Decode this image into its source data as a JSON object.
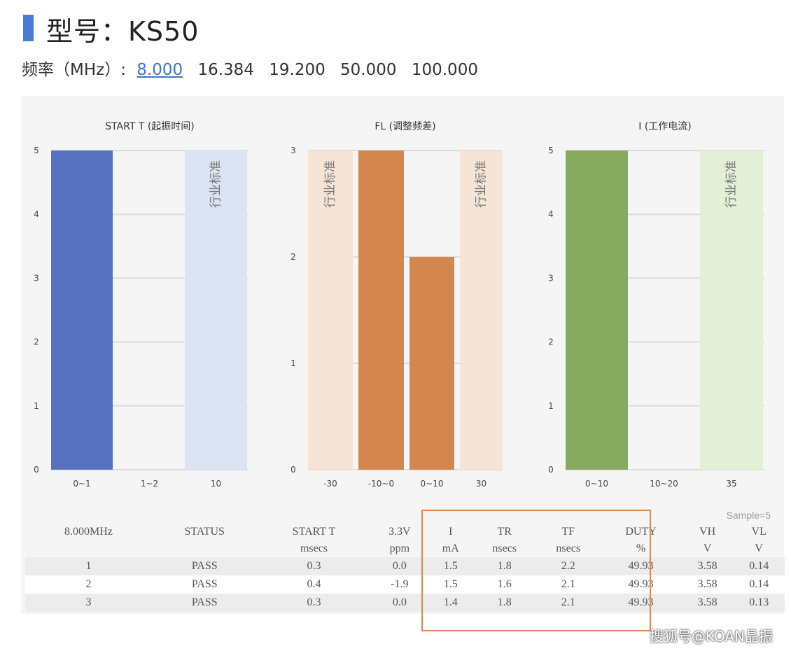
{
  "header": {
    "title": "型号：KS50",
    "freq_label": "频率（MHz）:",
    "freq_options": [
      "8.000",
      "16.384",
      "19.200",
      "50.000",
      "100.000"
    ],
    "freq_selected": "8.000",
    "accent_color": "#4a7bd0"
  },
  "chart_data": [
    {
      "type": "bar",
      "title": "START T (起振时间)",
      "categories": [
        "0~1",
        "1~2",
        "10"
      ],
      "values": [
        5,
        0,
        null
      ],
      "ylim": [
        0,
        5
      ],
      "yticks": [
        0,
        1,
        2,
        3,
        4,
        5
      ],
      "band_categories": [
        "10"
      ],
      "band_label": "行业标准",
      "bar_color": "#5672bf",
      "band_color": "#dce3f3",
      "grid": true
    },
    {
      "type": "bar",
      "title": "FL (调整频差)",
      "categories": [
        "-30",
        "-10~0",
        "0~10",
        "30"
      ],
      "values": [
        null,
        3,
        2,
        null
      ],
      "ylim": [
        0,
        3
      ],
      "yticks": [
        0,
        1,
        2,
        3
      ],
      "band_categories": [
        "-30",
        "30"
      ],
      "band_label": "行业标准",
      "bar_color": "#d3874f",
      "band_color": "#f6e4d6",
      "grid": true
    },
    {
      "type": "bar",
      "title": "I (工作电流)",
      "categories": [
        "0~10",
        "10~20",
        "35"
      ],
      "values": [
        5,
        0,
        null
      ],
      "ylim": [
        0,
        5
      ],
      "yticks": [
        0,
        1,
        2,
        3,
        4,
        5
      ],
      "band_categories": [
        "35"
      ],
      "band_label": "行业标准",
      "bar_color": "#86aa5e",
      "band_color": "#e4efd8",
      "grid": true
    }
  ],
  "table": {
    "sample_note": "Sample=5",
    "headers": [
      "8.000MHz",
      "STATUS",
      "START T",
      "3.3V",
      "I",
      "TR",
      "TF",
      "DUTY",
      "VH",
      "VL"
    ],
    "units": [
      "",
      "",
      "msecs",
      "ppm",
      "mA",
      "nsecs",
      "nsecs",
      "%",
      "V",
      "V"
    ],
    "rows": [
      [
        "1",
        "PASS",
        "0.3",
        "0.0",
        "1.5",
        "1.8",
        "2.2",
        "49.93",
        "3.58",
        "0.14"
      ],
      [
        "2",
        "PASS",
        "0.4",
        "-1.9",
        "1.5",
        "1.6",
        "2.1",
        "49.93",
        "3.58",
        "0.14"
      ],
      [
        "3",
        "PASS",
        "0.3",
        "0.0",
        "1.4",
        "1.8",
        "2.1",
        "49.93",
        "3.58",
        "0.13"
      ]
    ],
    "highlight_color": "#d98a55"
  },
  "watermark": "搜狐号@KOAN晶振"
}
